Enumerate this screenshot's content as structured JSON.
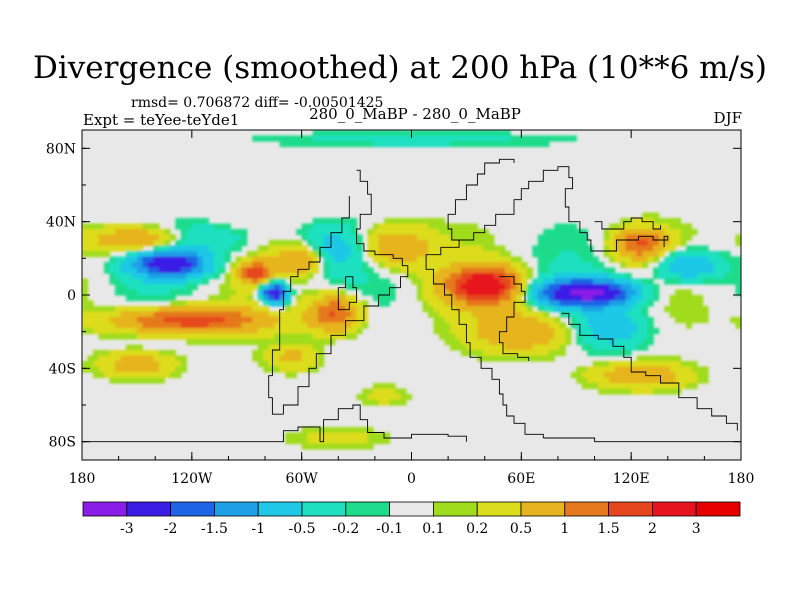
{
  "chart_data": {
    "type": "heatmap",
    "title": "Divergence (smoothed) at 200 hPa (10**6 m/s)",
    "stats": "rmsd= 0.706872 diff= -0.00501425",
    "experiment": "Expt = teYee-teYde1",
    "comparison": "280_0_MaBP - 280_0_MaBP",
    "season": "DJF",
    "xlim": [
      -180,
      180
    ],
    "ylim": [
      -90,
      90
    ],
    "x_ticks": [
      {
        "value": -180,
        "label": "180"
      },
      {
        "value": -120,
        "label": "120W"
      },
      {
        "value": -60,
        "label": "60W"
      },
      {
        "value": 0,
        "label": "0"
      },
      {
        "value": 60,
        "label": "60E"
      },
      {
        "value": 120,
        "label": "120E"
      },
      {
        "value": 180,
        "label": "180"
      }
    ],
    "y_ticks": [
      {
        "value": 80,
        "label": "80N"
      },
      {
        "value": 40,
        "label": "40N"
      },
      {
        "value": 0,
        "label": "0"
      },
      {
        "value": -40,
        "label": "40S"
      },
      {
        "value": -80,
        "label": "80S"
      }
    ],
    "colorbar": {
      "levels": [
        "-3",
        "-2",
        "-1.5",
        "-1",
        "-0.5",
        "-0.2",
        "-0.1",
        "0.1",
        "0.2",
        "0.5",
        "1",
        "1.5",
        "2",
        "3"
      ],
      "colors": [
        "#8a1ee6",
        "#3a1ee6",
        "#1e64e6",
        "#1ea0e6",
        "#1ec8e6",
        "#1ee0c0",
        "#1edc8c",
        "#e8e8e8",
        "#a0dc1e",
        "#dcdc1e",
        "#e6b41e",
        "#e6781e",
        "#e6461e",
        "#e6141e",
        "#e60000"
      ]
    },
    "features": [
      {
        "lon": -132,
        "lat": 17,
        "value": -2.5,
        "sx": 14,
        "sy": 5
      },
      {
        "lon": -148,
        "lat": 30,
        "value": 1.2,
        "sx": 18,
        "sy": 5
      },
      {
        "lon": -115,
        "lat": 30,
        "value": -0.6,
        "sx": 20,
        "sy": 6
      },
      {
        "lon": -122,
        "lat": -14,
        "value": 1.8,
        "sx": 28,
        "sy": 5
      },
      {
        "lon": -85,
        "lat": 12,
        "value": 1.7,
        "sx": 6,
        "sy": 4
      },
      {
        "lon": -75,
        "lat": 1,
        "value": -2.8,
        "sx": 5,
        "sy": 4
      },
      {
        "lon": -60,
        "lat": 20,
        "value": 1.2,
        "sx": 10,
        "sy": 6
      },
      {
        "lon": -42,
        "lat": -10,
        "value": 1.6,
        "sx": 10,
        "sy": 7
      },
      {
        "lon": -45,
        "lat": 25,
        "value": -0.8,
        "sx": 14,
        "sy": 8
      },
      {
        "lon": -10,
        "lat": 26,
        "value": 1.0,
        "sx": 14,
        "sy": 8
      },
      {
        "lon": 40,
        "lat": 5,
        "value": 2.6,
        "sx": 14,
        "sy": 7
      },
      {
        "lon": 95,
        "lat": 1,
        "value": -3.2,
        "sx": 18,
        "sy": 5
      },
      {
        "lon": 125,
        "lat": 28,
        "value": 1.5,
        "sx": 10,
        "sy": 6
      },
      {
        "lon": 150,
        "lat": 16,
        "value": -1.2,
        "sx": 12,
        "sy": 6
      },
      {
        "lon": 60,
        "lat": -20,
        "value": 1.0,
        "sx": 18,
        "sy": 8
      },
      {
        "lon": 110,
        "lat": -18,
        "value": -0.8,
        "sx": 14,
        "sy": 8
      },
      {
        "lon": -150,
        "lat": -38,
        "value": 0.8,
        "sx": 14,
        "sy": 5
      },
      {
        "lon": -65,
        "lat": -34,
        "value": 0.6,
        "sx": 10,
        "sy": 5
      },
      {
        "lon": 125,
        "lat": -44,
        "value": 0.9,
        "sx": 18,
        "sy": 5
      },
      {
        "lon": -15,
        "lat": -55,
        "value": 0.3,
        "sx": 10,
        "sy": 4
      },
      {
        "lon": -40,
        "lat": -78,
        "value": 0.3,
        "sx": 20,
        "sy": 4
      },
      {
        "lon": 0,
        "lat": 85,
        "value": -0.3,
        "sx": 60,
        "sy": 3
      }
    ]
  }
}
